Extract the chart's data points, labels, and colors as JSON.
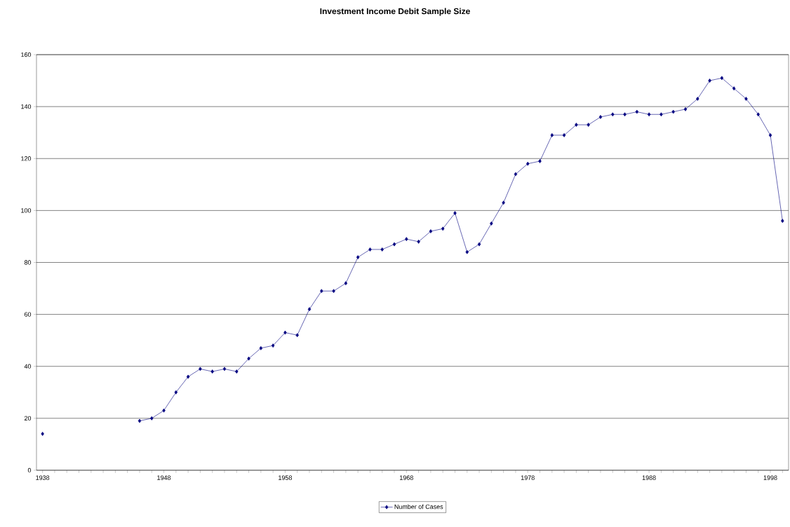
{
  "chart_data": {
    "type": "line",
    "title": "Investment Income Debit Sample Size",
    "x": [
      1938,
      1939,
      1940,
      1941,
      1942,
      1943,
      1944,
      1945,
      1946,
      1947,
      1948,
      1949,
      1950,
      1951,
      1952,
      1953,
      1954,
      1955,
      1956,
      1957,
      1958,
      1959,
      1960,
      1961,
      1962,
      1963,
      1964,
      1965,
      1966,
      1967,
      1968,
      1969,
      1970,
      1971,
      1972,
      1973,
      1974,
      1975,
      1976,
      1977,
      1978,
      1979,
      1980,
      1981,
      1982,
      1983,
      1984,
      1985,
      1986,
      1987,
      1988,
      1989,
      1990,
      1991,
      1992,
      1993,
      1994,
      1995,
      1996,
      1997,
      1998,
      1999
    ],
    "series": [
      {
        "name": "Number of Cases",
        "color": "#000080",
        "values": [
          14,
          null,
          null,
          null,
          null,
          null,
          null,
          null,
          19,
          20,
          23,
          30,
          36,
          39,
          38,
          39,
          38,
          43,
          47,
          48,
          53,
          52,
          62,
          69,
          69,
          72,
          82,
          85,
          85,
          87,
          89,
          88,
          92,
          93,
          99,
          84,
          87,
          95,
          103,
          114,
          118,
          119,
          129,
          129,
          133,
          133,
          136,
          137,
          137,
          138,
          137,
          137,
          138,
          139,
          143,
          150,
          151,
          147,
          143,
          137,
          129,
          96
        ]
      }
    ],
    "xlim": [
      1937.5,
      1999.5
    ],
    "xticks": [
      1938,
      {
        "value": 1939,
        "label": null
      },
      {
        "value": 1940,
        "label": null
      },
      {
        "value": 1941,
        "label": null
      },
      {
        "value": 1942,
        "label": null
      },
      {
        "value": 1943,
        "label": null
      },
      {
        "value": 1944,
        "label": null
      },
      {
        "value": 1945,
        "label": null
      },
      {
        "value": 1946,
        "label": null
      },
      {
        "value": 1947,
        "label": null
      },
      1948,
      {
        "value": 1949,
        "label": null
      },
      {
        "value": 1950,
        "label": null
      },
      {
        "value": 1951,
        "label": null
      },
      {
        "value": 1952,
        "label": null
      },
      {
        "value": 1953,
        "label": null
      },
      {
        "value": 1954,
        "label": null
      },
      {
        "value": 1955,
        "label": null
      },
      {
        "value": 1956,
        "label": null
      },
      {
        "value": 1957,
        "label": null
      },
      1958,
      {
        "value": 1959,
        "label": null
      },
      {
        "value": 1960,
        "label": null
      },
      {
        "value": 1961,
        "label": null
      },
      {
        "value": 1962,
        "label": null
      },
      {
        "value": 1963,
        "label": null
      },
      {
        "value": 1964,
        "label": null
      },
      {
        "value": 1965,
        "label": null
      },
      {
        "value": 1966,
        "label": null
      },
      {
        "value": 1967,
        "label": null
      },
      1968,
      {
        "value": 1969,
        "label": null
      },
      {
        "value": 1970,
        "label": null
      },
      {
        "value": 1971,
        "label": null
      },
      {
        "value": 1972,
        "label": null
      },
      {
        "value": 1973,
        "label": null
      },
      {
        "value": 1974,
        "label": null
      },
      {
        "value": 1975,
        "label": null
      },
      {
        "value": 1976,
        "label": null
      },
      {
        "value": 1977,
        "label": null
      },
      1978,
      {
        "value": 1979,
        "label": null
      },
      {
        "value": 1980,
        "label": null
      },
      {
        "value": 1981,
        "label": null
      },
      {
        "value": 1982,
        "label": null
      },
      {
        "value": 1983,
        "label": null
      },
      {
        "value": 1984,
        "label": null
      },
      {
        "value": 1985,
        "label": null
      },
      {
        "value": 1986,
        "label": null
      },
      {
        "value": 1987,
        "label": null
      },
      1988,
      {
        "value": 1989,
        "label": null
      },
      {
        "value": 1990,
        "label": null
      },
      {
        "value": 1991,
        "label": null
      },
      {
        "value": 1992,
        "label": null
      },
      {
        "value": 1993,
        "label": null
      },
      {
        "value": 1994,
        "label": null
      },
      {
        "value": 1995,
        "label": null
      },
      {
        "value": 1996,
        "label": null
      },
      {
        "value": 1997,
        "label": null
      },
      1998,
      {
        "value": 1999,
        "label": null
      }
    ],
    "ylim": [
      0,
      160
    ],
    "yticks": [
      0,
      20,
      40,
      60,
      80,
      100,
      120,
      140,
      160
    ],
    "grid": "y",
    "legend": "bottom",
    "marker": "diamond",
    "line_style": "solid"
  }
}
